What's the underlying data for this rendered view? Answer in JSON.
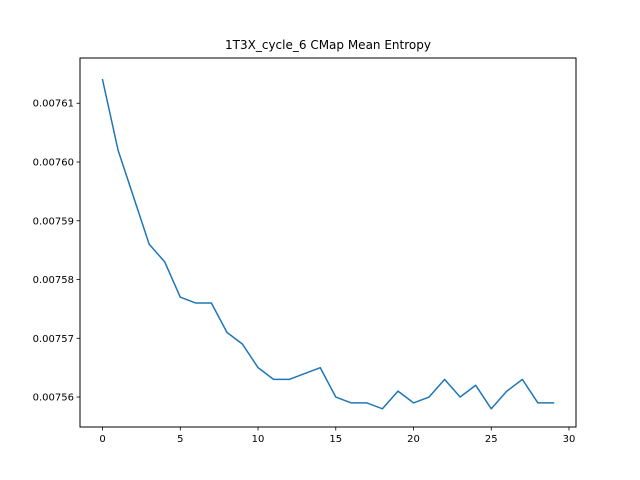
{
  "chart_data": {
    "type": "line",
    "title": "1T3X_cycle_6 CMap Mean Entropy",
    "xlabel": "",
    "ylabel": "",
    "xlim": [
      -1.45,
      30.45
    ],
    "ylim": [
      0.0075549,
      0.0076177
    ],
    "grid": false,
    "xticks": [
      0,
      5,
      10,
      15,
      20,
      25,
      30
    ],
    "xtick_labels": [
      "0",
      "5",
      "10",
      "15",
      "20",
      "25",
      "30"
    ],
    "yticks": [
      0.00756,
      0.00757,
      0.00758,
      0.00759,
      0.0076,
      0.00761
    ],
    "ytick_labels": [
      "0.00756",
      "0.00757",
      "0.00758",
      "0.00759",
      "0.00760",
      "0.00761"
    ],
    "line_color": "#1f77b4",
    "series": [
      {
        "x": [
          0,
          1,
          2,
          3,
          4,
          5,
          6,
          7,
          8,
          9,
          10,
          11,
          12,
          13,
          14,
          15,
          16,
          17,
          18,
          19,
          20,
          21,
          22,
          23,
          24,
          25,
          26,
          27,
          28,
          29
        ],
        "values": [
          0.007614,
          0.007602,
          0.007594,
          0.007586,
          0.007583,
          0.007577,
          0.007576,
          0.007576,
          0.007571,
          0.007569,
          0.007565,
          0.007563,
          0.007563,
          0.007564,
          0.007565,
          0.00756,
          0.007559,
          0.007559,
          0.007558,
          0.007561,
          0.007559,
          0.00756,
          0.007563,
          0.00756,
          0.007562,
          0.007558,
          0.007561,
          0.007563,
          0.007559,
          0.007559
        ]
      }
    ]
  }
}
